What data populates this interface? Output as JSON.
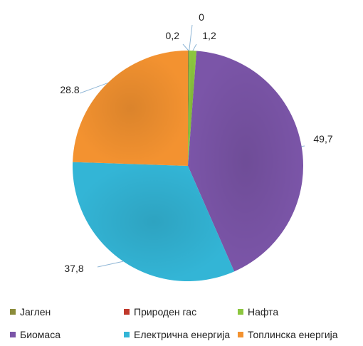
{
  "chart_data": {
    "type": "pie",
    "title": "",
    "categories": [
      "Јаглен",
      "Природен гас",
      "Нафта",
      "Биомаса",
      "Електрична енергија",
      "Топлинска енергија"
    ],
    "values": [
      0.2,
      0,
      1.2,
      49.7,
      37.8,
      28.8
    ],
    "value_labels": [
      "0,2",
      "0",
      "1,2",
      "49,7",
      "37,8",
      "28.8"
    ],
    "colors": [
      "#8b8c3a",
      "#c0392b",
      "#8cc63f",
      "#7b55a8",
      "#33b5d6",
      "#f39230"
    ],
    "start_angle_deg": 0,
    "direction": "clockwise",
    "legend_position": "bottom"
  },
  "legend": {
    "rows": [
      [
        {
          "label": "Јаглен",
          "color": "#8b8c3a"
        },
        {
          "label": "Природен гас",
          "color": "#c0392b"
        },
        {
          "label": "Нафта",
          "color": "#8cc63f"
        }
      ],
      [
        {
          "label": "Биомаса",
          "color": "#7b55a8"
        },
        {
          "label": "Електрична енергија",
          "color": "#33b5d6"
        },
        {
          "label": "Топлинска енергија",
          "color": "#f39230"
        }
      ]
    ]
  }
}
